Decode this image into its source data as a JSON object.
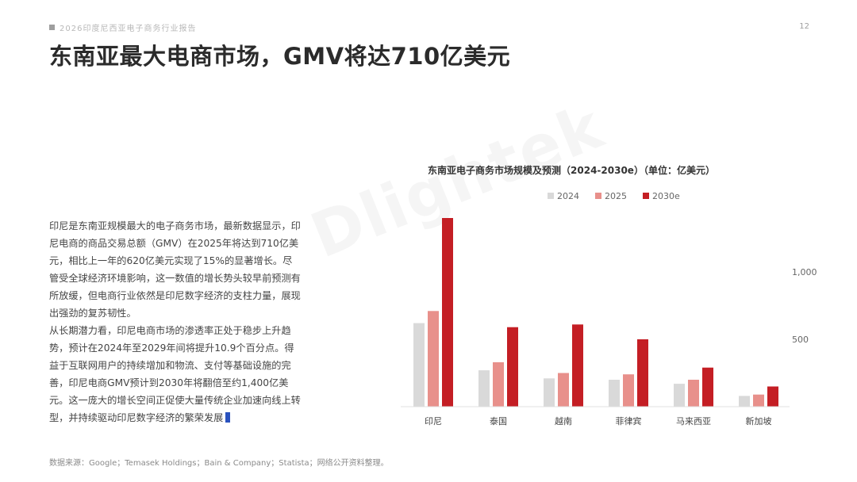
{
  "header": {
    "report_label": "2026印度尼西亚电子商务行业报告",
    "page_number": "12"
  },
  "title": "东南亚最大电商市场，GMV将达710亿美元",
  "body": {
    "paragraphs": [
      "印尼是东南亚规模最大的电子商务市场，最新数据显示，印尼电商的商品交易总额（GMV）在2025年将达到710亿美元，相比上一年的620亿美元实现了15%的显著增长。尽管受全球经济环境影响，这一数值的增长势头较早前预测有所放缓，但电商行业依然是印尼数字经济的支柱力量，展现出强劲的复苏韧性。",
      "从长期潜力看，印尼电商市场的渗透率正处于稳步上升趋势，预计在2024年至2029年间将提升10.9个百分点。得益于互联网用户的持续增加和物流、支付等基础设施的完善，印尼电商GMV预计到2030年将翻倍至约1,400亿美元。这一庞大的增长空间正促使大量传统企业加速向线上转型，并持续驱动印尼数字经济的繁荣发展"
    ]
  },
  "source": "数据来源：Google；Temasek Holdings；Bain & Company；Statista；网络公开资料整理。",
  "watermark": "Dlightek",
  "chart_data": {
    "type": "bar",
    "title": "东南亚电子商务市场规模及预测（2024-2030e）（单位：亿美元）",
    "categories": [
      "印尼",
      "泰国",
      "越南",
      "菲律宾",
      "马来西亚",
      "新加坡"
    ],
    "series": [
      {
        "name": "2024",
        "color": "#d9d9d9",
        "values": [
          620,
          270,
          210,
          200,
          170,
          80
        ]
      },
      {
        "name": "2025",
        "color": "#e8908b",
        "values": [
          710,
          330,
          250,
          240,
          200,
          90
        ]
      },
      {
        "name": "2030e",
        "color": "#c41e24",
        "values": [
          1400,
          590,
          610,
          500,
          290,
          150
        ]
      }
    ],
    "y_ticks": [
      {
        "value": 500,
        "label": "500"
      },
      {
        "value": 1000,
        "label": "1,000"
      }
    ],
    "ylim": [
      0,
      1400
    ],
    "legend_position": "top",
    "y_axis_side": "right",
    "grid": false
  }
}
